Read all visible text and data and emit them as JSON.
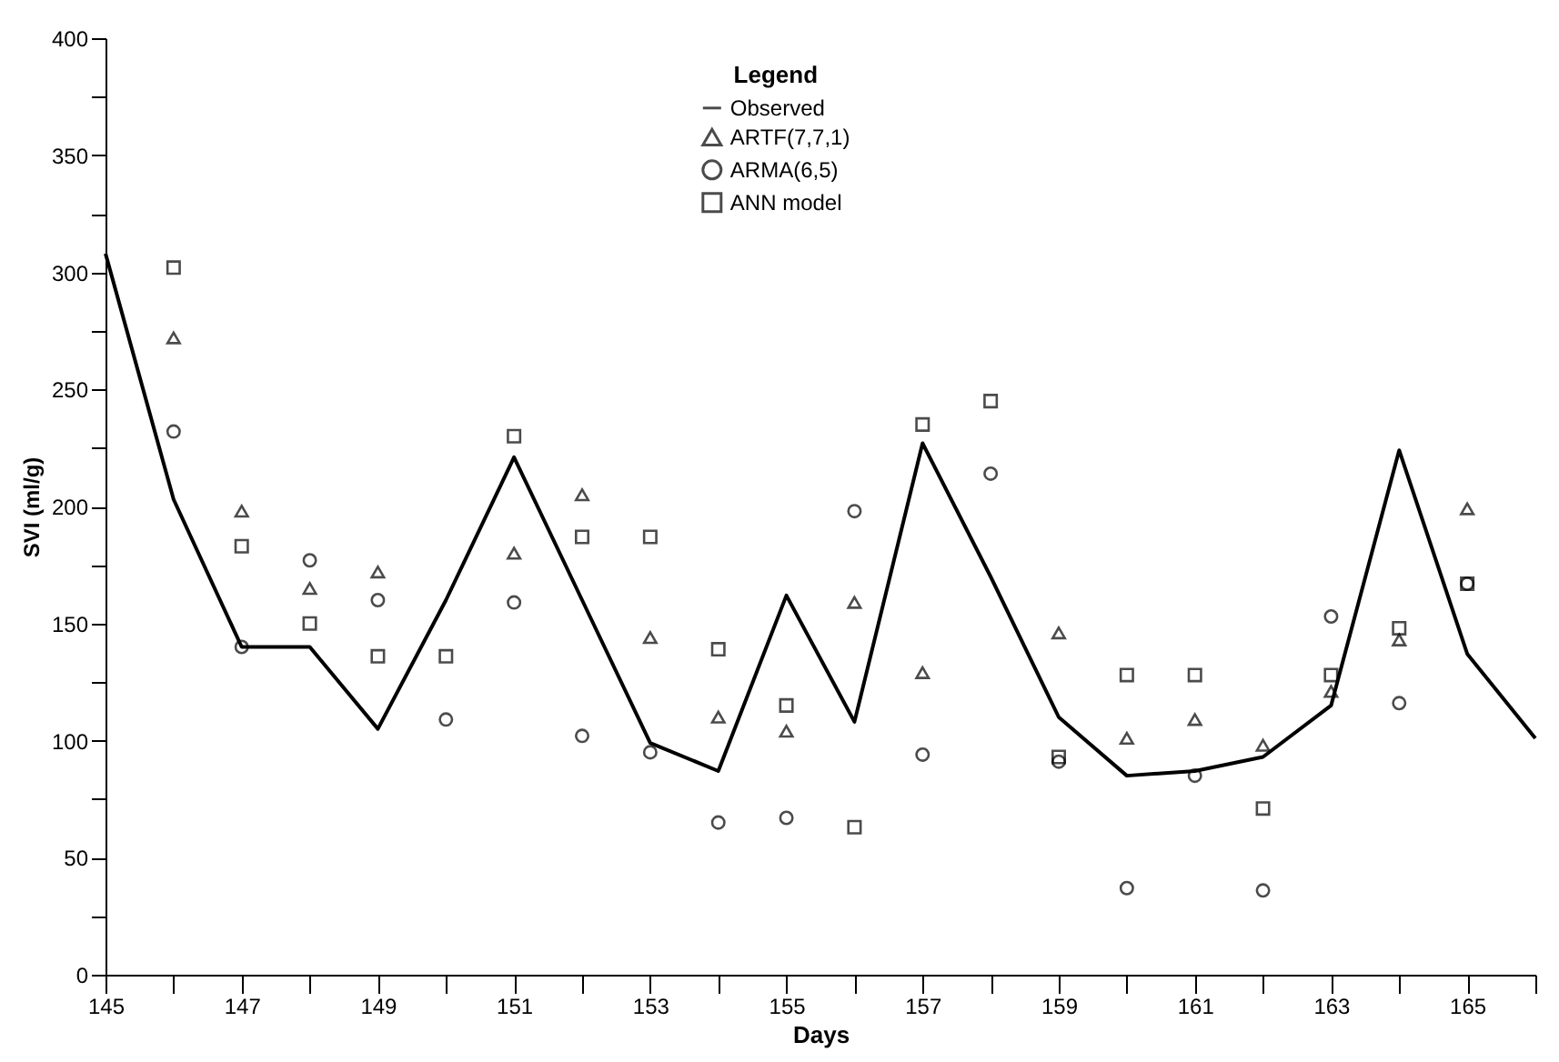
{
  "chart_data": {
    "type": "line",
    "xlabel": "Days",
    "ylabel": "SVI (ml/g)",
    "legend_title": "Legend",
    "legend": "top",
    "x": [
      145,
      146,
      147,
      148,
      149,
      150,
      151,
      152,
      153,
      154,
      155,
      156,
      157,
      158,
      159,
      160,
      161,
      162,
      163,
      164,
      165,
      166
    ],
    "series": [
      {
        "name": "Observed",
        "type": "line",
        "color": "#000000",
        "marker": "none",
        "values": [
          308,
          203,
          140,
          140,
          105,
          160,
          221,
          160,
          99,
          87,
          162,
          108,
          227,
          170,
          110,
          85,
          87,
          93,
          115,
          224,
          137,
          101
        ]
      },
      {
        "name": "ARTF(7,7,1)",
        "type": "scatter",
        "color": "#000000",
        "marker": "triangle",
        "x": [
          146,
          147,
          148,
          149,
          151,
          152,
          153,
          154,
          155,
          156,
          157,
          159,
          160,
          161,
          162,
          163,
          164,
          165
        ],
        "values": [
          272,
          198,
          165,
          172,
          180,
          205,
          144,
          110,
          104,
          159,
          129,
          146,
          101,
          109,
          98,
          121,
          143,
          199
        ]
      },
      {
        "name": "ARMA(6,5)",
        "type": "scatter",
        "color": "#000000",
        "marker": "circle",
        "x": [
          146,
          147,
          148,
          149,
          150,
          151,
          152,
          153,
          154,
          155,
          156,
          157,
          158,
          159,
          160,
          161,
          162,
          163,
          164,
          165
        ],
        "values": [
          232,
          140,
          177,
          160,
          109,
          159,
          102,
          95,
          65,
          67,
          198,
          94,
          214,
          91,
          37,
          85,
          36,
          153,
          116,
          167
        ]
      },
      {
        "name": "ANN model",
        "type": "scatter",
        "color": "#000000",
        "marker": "square",
        "x": [
          146,
          147,
          148,
          149,
          150,
          151,
          152,
          153,
          154,
          155,
          156,
          157,
          158,
          159,
          160,
          161,
          162,
          163,
          164,
          165
        ],
        "values": [
          302,
          183,
          150,
          136,
          136,
          230,
          187,
          187,
          139,
          115,
          63,
          235,
          245,
          93,
          128,
          128,
          71,
          128,
          148,
          167
        ]
      }
    ],
    "xlim": [
      145,
      166
    ],
    "xticks": [
      145,
      {
        "value": 146,
        "label": null
      },
      147,
      {
        "value": 148,
        "label": null
      },
      149,
      {
        "value": 150,
        "label": null
      },
      151,
      {
        "value": 152,
        "label": null
      },
      153,
      {
        "value": 154,
        "label": null
      },
      155,
      {
        "value": 156,
        "label": null
      },
      157,
      {
        "value": 158,
        "label": null
      },
      159,
      {
        "value": 160,
        "label": null
      },
      161,
      {
        "value": 162,
        "label": null
      },
      163,
      {
        "value": 164,
        "label": null
      },
      165,
      {
        "value": 166,
        "label": null
      }
    ],
    "ylim": [
      0,
      400
    ],
    "yticks": [
      0,
      {
        "value": 25,
        "label": null
      },
      50,
      {
        "value": 75,
        "label": null
      },
      100,
      {
        "value": 125,
        "label": null
      },
      150,
      {
        "value": 175,
        "label": null
      },
      200,
      {
        "value": 225,
        "label": null
      },
      250,
      {
        "value": 275,
        "label": null
      },
      300,
      {
        "value": 325,
        "label": null
      },
      350,
      {
        "value": 375,
        "label": null
      },
      400
    ],
    "grid": false
  }
}
